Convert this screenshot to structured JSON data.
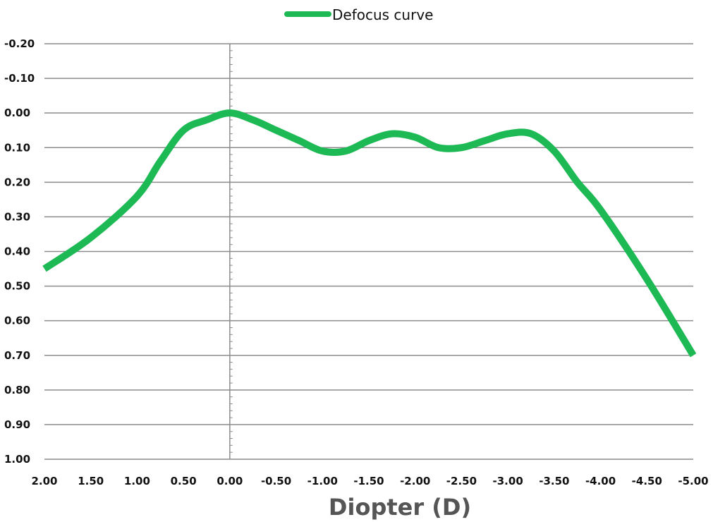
{
  "chart_data": {
    "type": "line",
    "title": "",
    "xlabel": "Diopter (D)",
    "ylabel": "",
    "x_reversed": true,
    "y_inverted": true,
    "xlim": [
      2.0,
      -5.0
    ],
    "ylim": [
      -0.2,
      1.0
    ],
    "x_ticks": [
      2.0,
      1.5,
      1.0,
      0.5,
      0.0,
      -0.5,
      -1.0,
      -1.5,
      -2.0,
      -2.5,
      -3.0,
      -3.5,
      -4.0,
      -4.5,
      -5.0
    ],
    "x_tick_labels": [
      "2.00",
      "1.50",
      "1.00",
      "0.50",
      "0.00",
      "-0.50",
      "-1.00",
      "-1.50",
      "-2.00",
      "-2.50",
      "-3.00",
      "-3.50",
      "-4.00",
      "-4.50",
      "-5.00"
    ],
    "y_ticks": [
      -0.2,
      -0.1,
      0.0,
      0.1,
      0.2,
      0.3,
      0.4,
      0.5,
      0.6,
      0.7,
      0.8,
      0.9,
      1.0
    ],
    "y_tick_labels": [
      "-0.20",
      "-0.10",
      "0.00",
      "0.10",
      "0.20",
      "0.30",
      "0.40",
      "0.50",
      "0.60",
      "0.70",
      "0.80",
      "0.90",
      "1.00"
    ],
    "grid": true,
    "legend_position": "top-center",
    "series": [
      {
        "name": "Defocus curve",
        "color": "#1db954",
        "x": [
          2.0,
          1.5,
          1.0,
          0.75,
          0.5,
          0.25,
          0.0,
          -0.25,
          -0.5,
          -0.75,
          -1.0,
          -1.25,
          -1.5,
          -1.75,
          -2.0,
          -2.25,
          -2.5,
          -2.75,
          -3.0,
          -3.25,
          -3.5,
          -3.75,
          -4.0,
          -4.5,
          -5.0
        ],
        "values": [
          0.45,
          0.36,
          0.24,
          0.14,
          0.05,
          0.02,
          0.0,
          0.02,
          0.05,
          0.08,
          0.11,
          0.11,
          0.08,
          0.06,
          0.07,
          0.1,
          0.1,
          0.08,
          0.06,
          0.06,
          0.11,
          0.2,
          0.28,
          0.48,
          0.7
        ]
      }
    ]
  }
}
